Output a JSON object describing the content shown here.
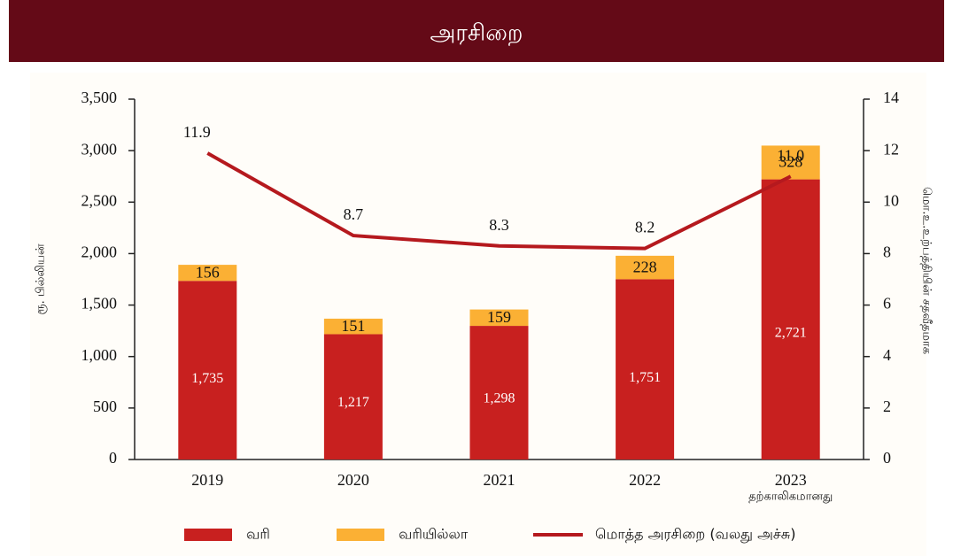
{
  "header": {
    "title": "அரசிறை"
  },
  "chart_data": {
    "type": "bar",
    "categories": [
      "2019",
      "2020",
      "2021",
      "2022",
      "2023"
    ],
    "annotation": "தற்காலிகமானது",
    "ylabel": "ரூ. பில்லியன்",
    "y2label": "மொ.உ.உற்பத்தியின் சதவீதமாக",
    "ylim": [
      0,
      3500
    ],
    "yticks": [
      0,
      500,
      {
        "value": 1000,
        "label": "1,000"
      },
      {
        "value": 1500,
        "label": "1,500"
      },
      {
        "value": 2000,
        "label": "2,000"
      },
      {
        "value": 2500,
        "label": "2,500"
      },
      {
        "value": 3000,
        "label": "3,000"
      },
      {
        "value": 3500,
        "label": "3,500"
      }
    ],
    "y2lim": [
      0,
      14
    ],
    "y2ticks": [
      0,
      2,
      4,
      6,
      8,
      10,
      12,
      14
    ],
    "stacked": true,
    "legend": "bottom",
    "series": [
      {
        "name": "வரி",
        "color": "#c8201f",
        "values": [
          1735,
          1217,
          1298,
          1751,
          2721
        ],
        "value_labels": [
          "1,735",
          "1,217",
          "1,298",
          "1,751",
          "2,721"
        ]
      },
      {
        "name": "வரியில்லா",
        "color": "#fbb034",
        "values": [
          156,
          151,
          159,
          228,
          328
        ]
      },
      {
        "name": "மொத்த அரசிறை (வலது அச்சு)",
        "type": "line",
        "axis": "y2",
        "color": "#b5191e",
        "values": [
          11.9,
          8.7,
          8.3,
          8.2,
          11.0
        ],
        "value_labels": [
          "11.9",
          "8.7",
          "8.3",
          "8.2",
          "11.0"
        ]
      }
    ]
  }
}
